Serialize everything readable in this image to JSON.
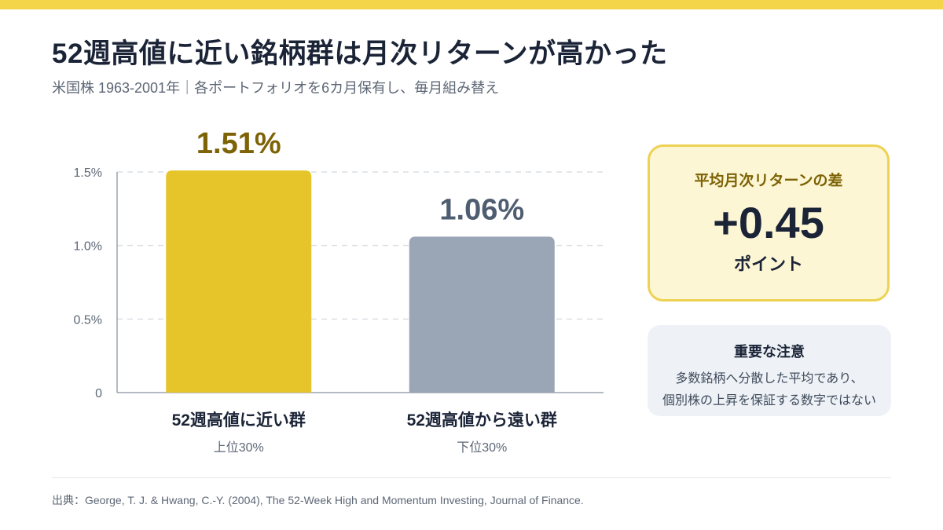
{
  "header": {
    "title": "52週高値に近い銘柄群は月次リターンが高かった",
    "subtitle": "米国株 1963-2001年｜各ポートフォリオを6カ月保有し、毎月組み替え"
  },
  "chart_data": {
    "type": "bar",
    "categories": [
      "52週高値に近い群",
      "52週高値から遠い群"
    ],
    "category_sublabels": [
      "上位30%",
      "下位30%"
    ],
    "values": [
      1.51,
      1.06
    ],
    "data_labels": [
      "1.51%",
      "1.06%"
    ],
    "colors": [
      "#e6c52a",
      "#9aa6b5"
    ],
    "label_colors": [
      "#7d6305",
      "#4f5d70"
    ],
    "ylim": [
      0,
      1.5
    ],
    "yticks": [
      0,
      0.5,
      1.0,
      1.5
    ],
    "ytick_labels": [
      "0",
      "0.5%",
      "1.0%",
      "1.5%"
    ],
    "grid": true
  },
  "callout": {
    "label": "平均月次リターンの差",
    "value": "+0.45",
    "unit": "ポイント"
  },
  "note": {
    "title": "重要な注意",
    "lines": [
      "多数銘柄へ分散した平均であり、",
      "個別株の上昇を保証する数字ではない"
    ]
  },
  "footer": {
    "source": "出典：George, T. J. & Hwang, C.-Y. (2004), The 52-Week High and Momentum Investing, Journal of Finance."
  },
  "colors": {
    "accent": "#f4d54a",
    "callout_bg": "#fdf6d4",
    "callout_border": "#edd253",
    "note_bg": "#eef2f7"
  }
}
